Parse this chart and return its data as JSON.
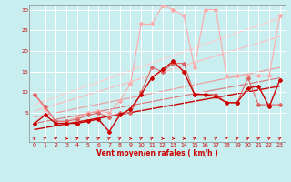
{
  "xlabel": "Vent moyen/en rafales ( km/h )",
  "background_color": "#c8eef0",
  "grid_color": "#ffffff",
  "xlim": [
    -0.5,
    23.5
  ],
  "ylim": [
    -2,
    31
  ],
  "yticks": [
    5,
    10,
    15,
    20,
    25,
    30
  ],
  "xticks": [
    0,
    1,
    2,
    3,
    4,
    5,
    6,
    7,
    8,
    9,
    10,
    11,
    12,
    13,
    14,
    15,
    16,
    17,
    18,
    19,
    20,
    21,
    22,
    23
  ],
  "trend_lines": [
    {
      "x0": 0,
      "y0": 1.0,
      "x1": 23,
      "y1": 11.5,
      "color": "#cc0000",
      "lw": 1.0
    },
    {
      "x0": 0,
      "y0": 2.5,
      "x1": 23,
      "y1": 13.5,
      "color": "#dd7777",
      "lw": 0.8
    },
    {
      "x0": 0,
      "y0": 4.0,
      "x1": 23,
      "y1": 16.0,
      "color": "#ee9999",
      "lw": 0.8
    },
    {
      "x0": 0,
      "y0": 5.5,
      "x1": 23,
      "y1": 23.5,
      "color": "#ffbbbb",
      "lw": 0.8
    },
    {
      "x0": 0,
      "y0": 7.0,
      "x1": 23,
      "y1": 28.0,
      "color": "#ffcccc",
      "lw": 0.8
    }
  ],
  "series": [
    {
      "x": [
        0,
        1,
        2,
        3,
        4,
        5,
        6,
        7,
        8,
        9,
        10,
        11,
        12,
        13,
        14,
        15,
        16,
        17,
        18,
        19,
        20,
        21,
        22,
        23
      ],
      "y": [
        2.5,
        4.5,
        2.5,
        2.5,
        2.5,
        3.0,
        3.5,
        0.5,
        4.5,
        6.0,
        9.5,
        13.5,
        15.5,
        17.5,
        15.0,
        9.5,
        9.5,
        9.0,
        7.5,
        7.5,
        11.0,
        11.5,
        6.5,
        13.0
      ],
      "color": "#cc0000",
      "lw": 1.0,
      "marker": "D",
      "ms": 2
    },
    {
      "x": [
        0,
        1,
        2,
        3,
        4,
        5,
        6,
        7,
        8,
        9,
        10,
        11,
        12,
        13,
        14,
        15,
        16,
        17,
        18,
        19,
        20,
        21,
        22,
        23
      ],
      "y": [
        9.5,
        6.5,
        3.0,
        3.0,
        3.5,
        4.5,
        5.0,
        4.0,
        5.0,
        5.0,
        10.0,
        16.0,
        15.0,
        17.0,
        17.0,
        9.5,
        9.5,
        9.5,
        7.5,
        7.5,
        13.5,
        7.0,
        7.0,
        7.0
      ],
      "color": "#dd6666",
      "lw": 0.8,
      "marker": "D",
      "ms": 2
    },
    {
      "x": [
        0,
        1,
        2,
        3,
        4,
        5,
        6,
        7,
        8,
        9,
        10,
        11,
        12,
        13,
        14,
        15,
        16,
        17,
        18,
        19,
        20,
        21,
        22,
        23
      ],
      "y": [
        9.5,
        6.0,
        3.0,
        3.0,
        4.0,
        5.0,
        5.5,
        5.0,
        8.0,
        12.0,
        26.5,
        26.5,
        31.0,
        30.0,
        28.5,
        16.0,
        30.0,
        30.0,
        14.0,
        14.0,
        14.0,
        14.0,
        14.0,
        28.5
      ],
      "color": "#ffaaaa",
      "lw": 0.8,
      "marker": "D",
      "ms": 2
    }
  ],
  "arrow_angles": [
    45,
    45,
    45,
    0,
    30,
    45,
    45,
    45,
    45,
    0,
    45,
    45,
    0,
    0,
    0,
    30,
    45,
    45,
    45,
    45,
    45,
    45,
    45,
    45
  ],
  "colors": {
    "bg": "#c8eef0",
    "grid": "#ffffff",
    "axis_label": "#cc0000",
    "tick_label": "#cc0000",
    "arrow": "#cc0000",
    "spine": "#888888"
  }
}
